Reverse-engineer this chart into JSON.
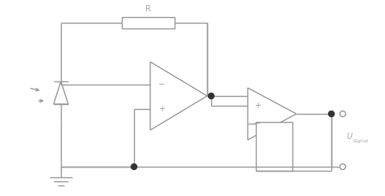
{
  "bg_color": "#ffffff",
  "line_color": "#999999",
  "line_width": 1.0,
  "dot_color": "#333333",
  "text_color": "#aaaaaa",
  "resistor_label": "R",
  "figsize": [
    4.74,
    2.41
  ],
  "dpi": 100
}
